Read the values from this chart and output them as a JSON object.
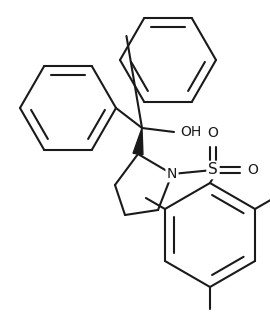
{
  "bg_color": "#ffffff",
  "line_color": "#1a1a1a",
  "text_color": "#1a1a1a",
  "lw": 1.5,
  "figsize": [
    2.7,
    3.19
  ],
  "dpi": 100,
  "xlim": [
    0,
    270
  ],
  "ylim": [
    0,
    319
  ]
}
